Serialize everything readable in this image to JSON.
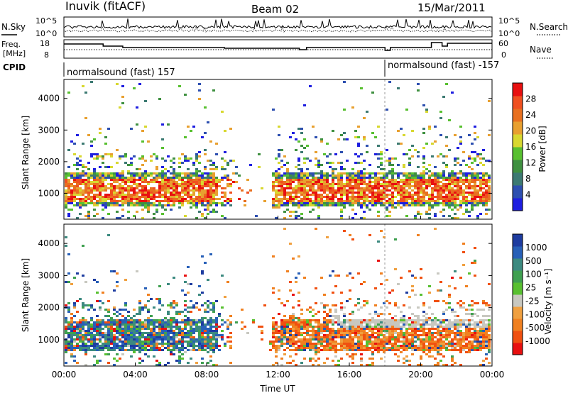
{
  "header": {
    "station": "Inuvik (fitACF)",
    "beam": "Beam 02",
    "date": "15/Mar/2011"
  },
  "sky_panel": {
    "left_label": "N.Sky",
    "right_label": "N.Search",
    "tick_top": "10^5",
    "tick_bottom": "10^0",
    "right_tick_top": "10^5",
    "right_tick_bottom": "10^0"
  },
  "freq_panel": {
    "left_label_1": "Freq.",
    "left_label_2": "[MHz]",
    "right_label": "Nave",
    "left_ticks": [
      "18",
      "8"
    ],
    "right_ticks": [
      "60",
      "0"
    ]
  },
  "cpid": {
    "label": "CPID",
    "segments": [
      {
        "start_hour": 0,
        "end_hour": 18,
        "text": "normalsound (fast) 157"
      },
      {
        "start_hour": 18,
        "end_hour": 24,
        "text": "normalsound (fast) -157"
      }
    ]
  },
  "chart_data": [
    {
      "type": "heatmap",
      "name": "power",
      "ylabel": "Slant Range [km]",
      "yticks": [
        1000,
        2000,
        3000,
        4000
      ],
      "ylim": [
        180,
        4600
      ],
      "xlim_hours": [
        0,
        24
      ],
      "colorbar": {
        "label": "Power [dB]",
        "ticks": [
          "4",
          "8",
          "12",
          "16",
          "20",
          "24",
          "28"
        ],
        "colors": [
          "#1e1ee0",
          "#2d4fb0",
          "#3c7a72",
          "#3f9040",
          "#58c030",
          "#d8d830",
          "#e8a030",
          "#e87020",
          "#f05020",
          "#e81010"
        ]
      }
    },
    {
      "type": "heatmap",
      "name": "velocity",
      "ylabel": "Slant Range [km]",
      "xlabel": "Time UT",
      "yticks": [
        1000,
        2000,
        3000,
        4000
      ],
      "ylim": [
        180,
        4600
      ],
      "xlim_hours": [
        0,
        24
      ],
      "xticks": [
        "00:00",
        "04:00",
        "08:00",
        "12:00",
        "16:00",
        "20:00",
        "00:00"
      ],
      "colorbar": {
        "label": "Velocity [m s⁻¹]",
        "ticks": [
          "1000",
          "500",
          "100",
          "25",
          "-25",
          "-100",
          "-500",
          "-1000"
        ],
        "colors": [
          "#1e3ca0",
          "#2860b8",
          "#3c8a80",
          "#3fa050",
          "#58c030",
          "#c8c8c0",
          "#f0a040",
          "#f08020",
          "#f05010",
          "#e81010"
        ]
      }
    }
  ]
}
